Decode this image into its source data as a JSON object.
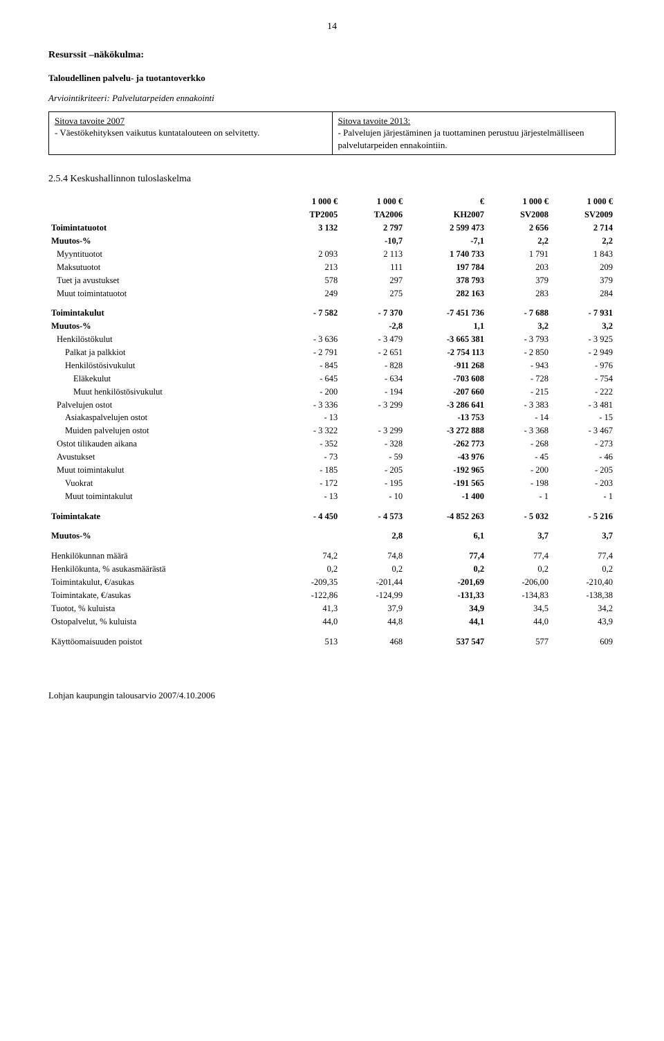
{
  "page_number": "14",
  "section_title": "Resurssit –näkökulma:",
  "subtitle": "Taloudellinen palvelu- ja tuotantoverkko",
  "criteria_label": "Arviointikriteeri:",
  "criteria_text": " Palvelutarpeiden ennakointi",
  "box": {
    "left_hdr": "Sitova tavoite 2007",
    "left_body": "- Väestökehityksen vaikutus kuntatalouteen on selvitetty.",
    "right_hdr": "Sitova tavoite 2013:",
    "right_body": "- Palvelujen järjestäminen ja tuottaminen perustuu järjestelmälliseen palvelutarpeiden ennakointiin."
  },
  "table_title": "2.5.4 Keskushallinnon tuloslaskelma",
  "cols": {
    "c1a": "1 000 €",
    "c1b": "TP2005",
    "c2a": "1 000 €",
    "c2b": "TA2006",
    "c3a": "€",
    "c3b": "KH2007",
    "c4a": "1 000 €",
    "c4b": "SV2008",
    "c5a": "1 000 €",
    "c5b": "SV2009"
  },
  "rows": {
    "toimintatuotot": {
      "l": "Toimintatuotot",
      "v": [
        "3 132",
        "2 797",
        "2 599 473",
        "2 656",
        "2 714"
      ],
      "b": true
    },
    "muutos1": {
      "l": "Muutos-%",
      "v": [
        "",
        "-10,7",
        "-7,1",
        "2,2",
        "2,2"
      ],
      "b": true
    },
    "myyntituotot": {
      "l": "Myyntituotot",
      "v": [
        "2 093",
        "2 113",
        "1 740 733",
        "1 791",
        "1 843"
      ],
      "i": 1
    },
    "maksutuotot": {
      "l": "Maksutuotot",
      "v": [
        "213",
        "111",
        "197 784",
        "203",
        "209"
      ],
      "i": 1
    },
    "tuet": {
      "l": "Tuet ja avustukset",
      "v": [
        "578",
        "297",
        "378 793",
        "379",
        "379"
      ],
      "i": 1
    },
    "muuttuotot": {
      "l": "Muut toimintatuotot",
      "v": [
        "249",
        "275",
        "282 163",
        "283",
        "284"
      ],
      "i": 1
    },
    "toimintakulut": {
      "l": "Toimintakulut",
      "v": [
        "- 7 582",
        "- 7 370",
        "-7 451 736",
        "- 7 688",
        "- 7 931"
      ],
      "b": true
    },
    "muutos2": {
      "l": "Muutos-%",
      "v": [
        "",
        "-2,8",
        "1,1",
        "3,2",
        "3,2"
      ],
      "b": true
    },
    "henkilosto": {
      "l": "Henkilöstökulut",
      "v": [
        "- 3 636",
        "- 3 479",
        "-3 665 381",
        "- 3 793",
        "- 3 925"
      ],
      "i": 1
    },
    "palkat": {
      "l": "Palkat ja palkkiot",
      "v": [
        "- 2 791",
        "- 2 651",
        "-2 754 113",
        "- 2 850",
        "- 2 949"
      ],
      "i": 2
    },
    "sivukulut": {
      "l": "Henkilöstösivukulut",
      "v": [
        "- 845",
        "- 828",
        "-911 268",
        "- 943",
        "- 976"
      ],
      "i": 2
    },
    "elake": {
      "l": "Eläkekulut",
      "v": [
        "- 645",
        "- 634",
        "-703 608",
        "- 728",
        "- 754"
      ],
      "i": 3
    },
    "muutsivu": {
      "l": "Muut henkilöstösivukulut",
      "v": [
        "- 200",
        "- 194",
        "-207 660",
        "- 215",
        "- 222"
      ],
      "i": 3
    },
    "palvostot": {
      "l": "Palvelujen ostot",
      "v": [
        "- 3 336",
        "- 3 299",
        "-3 286 641",
        "- 3 383",
        "- 3 481"
      ],
      "i": 1
    },
    "asiakas": {
      "l": "Asiakaspalvelujen ostot",
      "v": [
        "- 13",
        "",
        "-13 753",
        "- 14",
        "- 15"
      ],
      "i": 2
    },
    "muidenpalv": {
      "l": "Muiden palvelujen ostot",
      "v": [
        "- 3 322",
        "- 3 299",
        "-3 272 888",
        "- 3 368",
        "- 3 467"
      ],
      "i": 2
    },
    "ostot": {
      "l": "Ostot tilikauden aikana",
      "v": [
        "- 352",
        "- 328",
        "-262 773",
        "- 268",
        "- 273"
      ],
      "i": 1
    },
    "avustukset": {
      "l": "Avustukset",
      "v": [
        "- 73",
        "- 59",
        "-43 976",
        "- 45",
        "- 46"
      ],
      "i": 1
    },
    "muutkulut": {
      "l": "Muut toimintakulut",
      "v": [
        "- 185",
        "- 205",
        "-192 965",
        "- 200",
        "- 205"
      ],
      "i": 1
    },
    "vuokrat": {
      "l": "Vuokrat",
      "v": [
        "- 172",
        "- 195",
        "-191 565",
        "- 198",
        "- 203"
      ],
      "i": 2
    },
    "muutkulut2": {
      "l": "Muut toimintakulut",
      "v": [
        "- 13",
        "- 10",
        "-1 400",
        "- 1",
        "- 1"
      ],
      "i": 2
    },
    "toimintakate": {
      "l": "Toimintakate",
      "v": [
        "- 4 450",
        "- 4 573",
        "-4 852 263",
        "- 5 032",
        "- 5 216"
      ],
      "b": true
    },
    "muutos3": {
      "l": "Muutos-%",
      "v": [
        "",
        "2,8",
        "6,1",
        "3,7",
        "3,7"
      ],
      "b": true
    },
    "henkmaara": {
      "l": "Henkilökunnan määrä",
      "v": [
        "74,2",
        "74,8",
        "77,4",
        "77,4",
        "77,4"
      ]
    },
    "henkpct": {
      "l": "Henkilökunta, % asukasmäärästä",
      "v": [
        "0,2",
        "0,2",
        "0,2",
        "0,2",
        "0,2"
      ]
    },
    "tkulutas": {
      "l": "Toimintakulut, €/asukas",
      "v": [
        "-209,35",
        "-201,44",
        "-201,69",
        "-206,00",
        "-210,40"
      ]
    },
    "tkateas": {
      "l": "Toimintakate, €/asukas",
      "v": [
        "-122,86",
        "-124,99",
        "-131,33",
        "-134,83",
        "-138,38"
      ]
    },
    "tuototpct": {
      "l": "Tuotot, % kuluista",
      "v": [
        "41,3",
        "37,9",
        "34,9",
        "34,5",
        "34,2"
      ]
    },
    "ostopct": {
      "l": "Ostopalvelut, % kuluista",
      "v": [
        "44,0",
        "44,8",
        "44,1",
        "44,0",
        "43,9"
      ]
    },
    "poistot": {
      "l": "Käyttöomaisuuden poistot",
      "v": [
        "513",
        "468",
        "537 547",
        "577",
        "609"
      ]
    }
  },
  "bold_col3_rows": [
    "toimintatuotot",
    "muutos1",
    "myyntituotot",
    "maksutuotot",
    "tuet",
    "muuttuotot",
    "toimintakulut",
    "muutos2",
    "henkilosto",
    "palkat",
    "sivukulut",
    "elake",
    "muutsivu",
    "palvostot",
    "asiakas",
    "muidenpalv",
    "ostot",
    "avustukset",
    "muutkulut",
    "vuokrat",
    "muutkulut2",
    "toimintakate",
    "muutos3",
    "henkmaara",
    "henkpct",
    "tkulutas",
    "tkateas",
    "tuototpct",
    "ostopct",
    "poistot"
  ],
  "footer": "Lohjan kaupungin talousarvio 2007/4.10.2006"
}
